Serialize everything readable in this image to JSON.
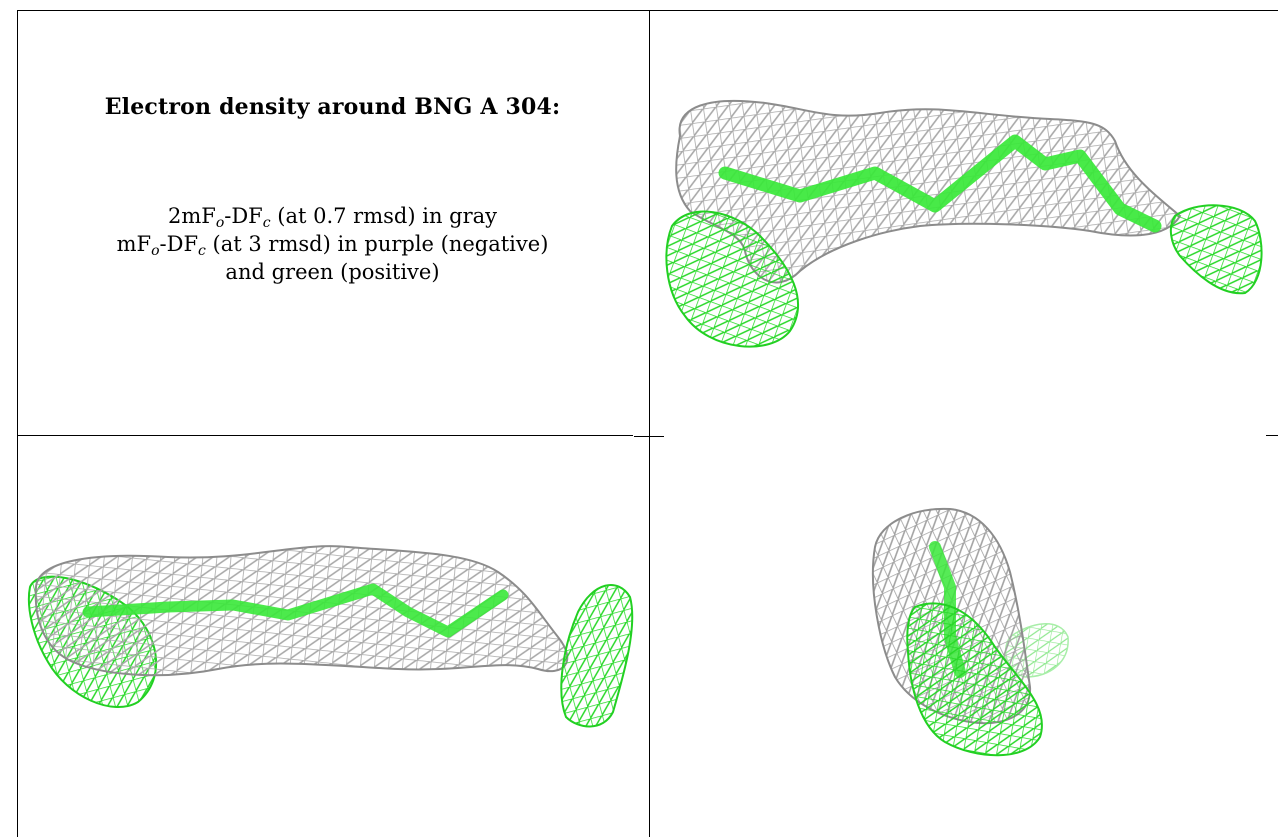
{
  "caption": {
    "title": "Electron density around BNG A 304:",
    "line1": {
      "prefix": "2mF",
      "sub_o": "o",
      "mid": "-DF",
      "sub_c": "c",
      "suffix": " (at 0.7 rmsd) in gray"
    },
    "line2": {
      "prefix": "mF",
      "sub_o": "o",
      "mid": "-DF",
      "sub_c": "c",
      "suffix": " (at 3 rmsd) in purple (negative)"
    },
    "line3": "and green (positive)"
  },
  "colors": {
    "mesh_gray": "#9a9a9a",
    "mesh_green": "#2ee82e",
    "ligand_green": "#33e833",
    "border": "#000000"
  },
  "panels": [
    {
      "name": "density-view-1"
    },
    {
      "name": "density-view-2"
    },
    {
      "name": "density-view-3"
    }
  ]
}
